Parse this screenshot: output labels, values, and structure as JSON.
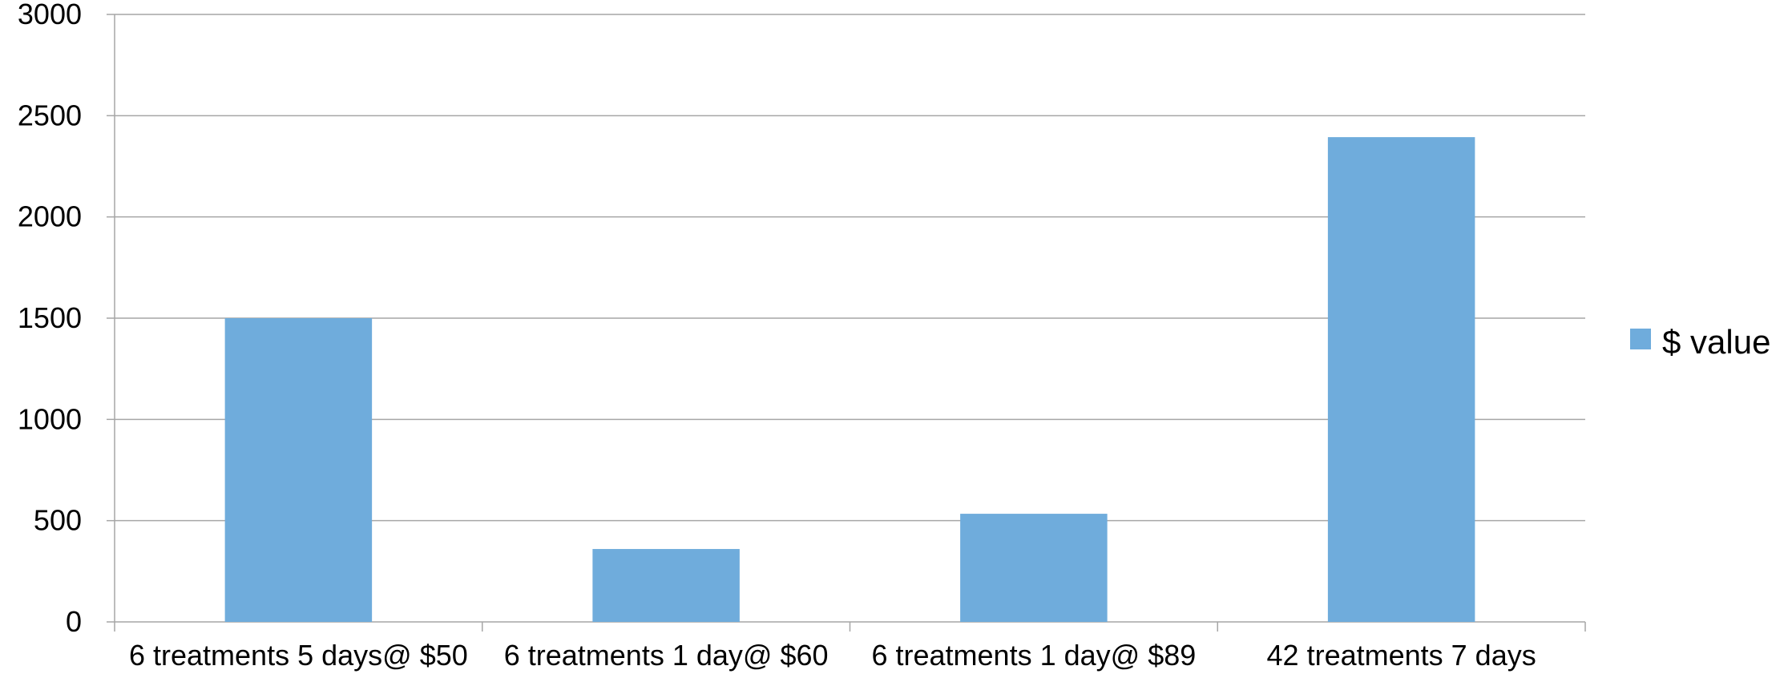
{
  "chart_data": {
    "type": "bar",
    "categories": [
      "6 treatments 5 days@ $50",
      "6 treatments 1 day@ $60",
      "6 treatments 1 day@ $89",
      "42 treatments 7 days"
    ],
    "series": [
      {
        "name": "$ value",
        "values": [
          1500,
          360,
          534,
          2394
        ],
        "color": "#6FACDC"
      }
    ],
    "title": "",
    "xlabel": "",
    "ylabel": "",
    "ylim": [
      0,
      3000
    ],
    "yticks": [
      0,
      500,
      1000,
      1500,
      2000,
      2500,
      3000
    ],
    "grid": true,
    "gridline_color": "#A6A6A6",
    "legend_position": "right"
  }
}
